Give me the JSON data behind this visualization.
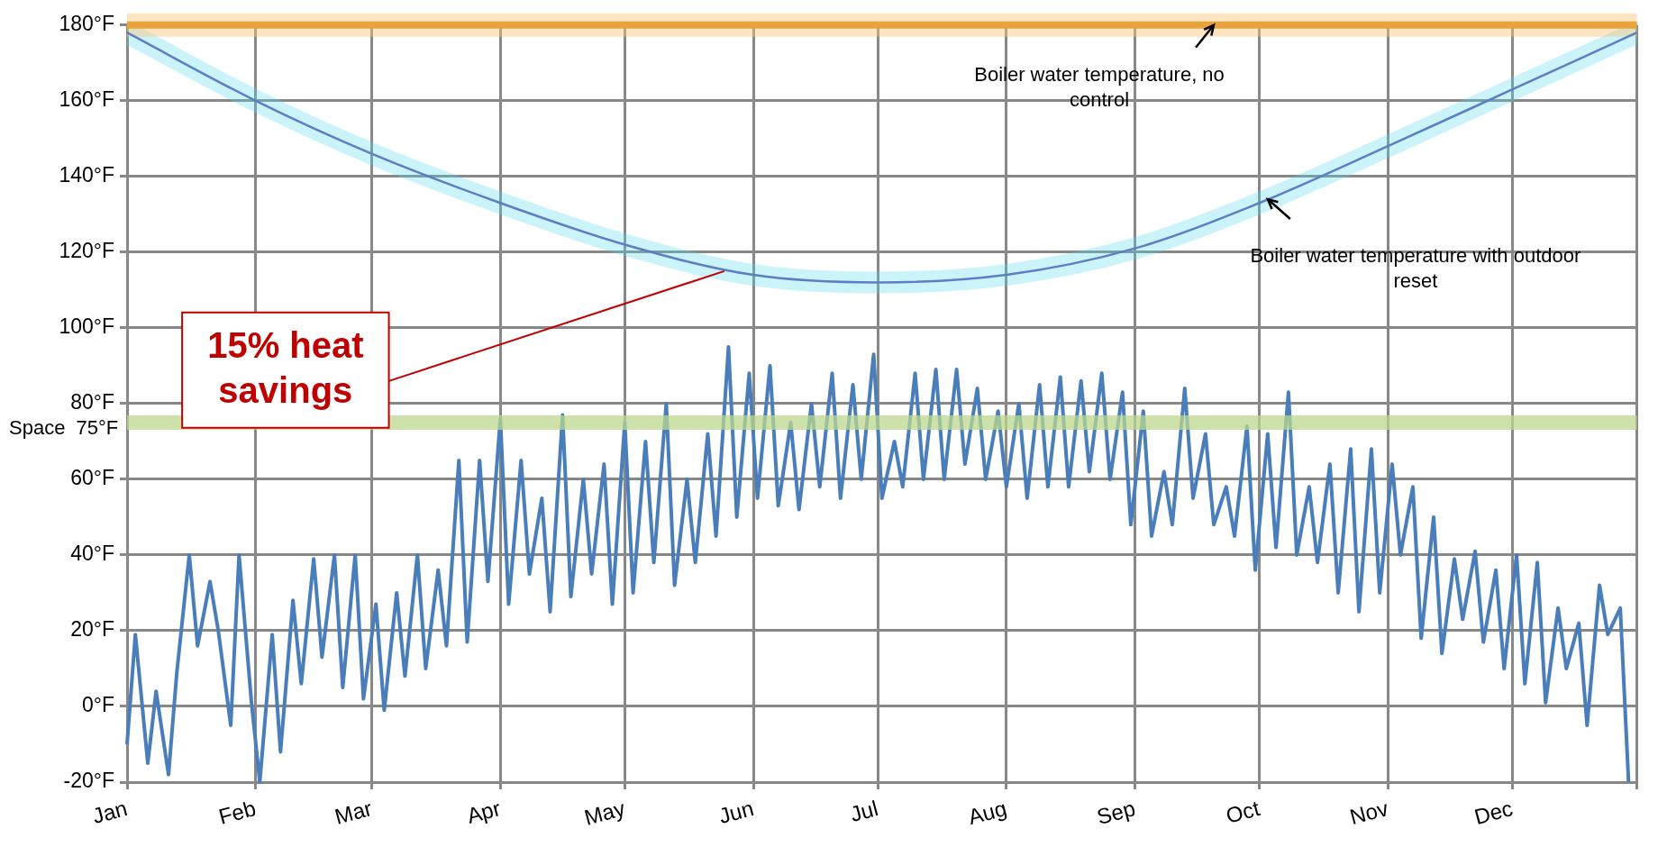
{
  "chart_data": {
    "type": "line",
    "xlim": [
      "--01-01",
      "--12-31"
    ],
    "xticks": [
      {
        "value": "--01-01",
        "label": "Jan"
      },
      {
        "value": "--02-01",
        "label": "Feb"
      },
      {
        "value": "--03-01",
        "label": "Mar"
      },
      {
        "value": "--04-01",
        "label": "Apr"
      },
      {
        "value": "--05-01",
        "label": "May"
      },
      {
        "value": "--06-01",
        "label": "Jun"
      },
      {
        "value": "--07-01",
        "label": "Jul"
      },
      {
        "value": "--08-01",
        "label": "Aug"
      },
      {
        "value": "--09-01",
        "label": "Sep"
      },
      {
        "value": "--10-01",
        "label": "Oct"
      },
      {
        "value": "--11-01",
        "label": "Nov"
      },
      {
        "value": "--12-01",
        "label": "Dec"
      },
      {
        "value": "--12-31",
        "label": null
      }
    ],
    "ylim": [
      -20,
      180
    ],
    "yticks": [
      {
        "value": -20,
        "label": "-20°F"
      },
      {
        "value": 0,
        "label": "0°F"
      },
      {
        "value": 20,
        "label": "20°F"
      },
      {
        "value": 40,
        "label": "40°F"
      },
      {
        "value": 60,
        "label": "60°F"
      },
      {
        "value": 80,
        "label": "80°F"
      },
      {
        "value": 100,
        "label": "100°F"
      },
      {
        "value": 120,
        "label": "120°F"
      },
      {
        "value": 140,
        "label": "140°F"
      },
      {
        "value": 160,
        "label": "160°F"
      },
      {
        "value": 180,
        "label": "180°F"
      }
    ],
    "grid": true,
    "legend": false,
    "marker": "none",
    "line_style": "solid",
    "series": [
      {
        "color": "#e8a33c",
        "x": [
          "--01-01",
          "--12-31"
        ],
        "values": [
          180,
          180
        ]
      },
      {
        "color": "#5b7fc4",
        "x": [
          "--01-01",
          "--02-01",
          "--03-01",
          "--04-01",
          "--05-01",
          "--06-01",
          "--07-01",
          "--08-01",
          "--09-01",
          "--10-01",
          "--11-01",
          "--12-01",
          "--12-31"
        ],
        "values": [
          178,
          160,
          146,
          133,
          122,
          114,
          112,
          114,
          121,
          133,
          148,
          163,
          178
        ]
      },
      {
        "color": "#4a7ebb",
        "x": [
          "--01-01",
          "--01-03",
          "--01-06",
          "--01-08",
          "--01-11",
          "--01-13",
          "--01-16",
          "--01-18",
          "--01-21",
          "--01-23",
          "--01-26",
          "--01-28",
          "--01-31",
          "--02-02",
          "--02-05",
          "--02-07",
          "--02-10",
          "--02-12",
          "--02-15",
          "--02-17",
          "--02-20",
          "--02-22",
          "--02-25",
          "--02-27",
          "--03-02",
          "--03-04",
          "--03-07",
          "--03-09",
          "--03-12",
          "--03-14",
          "--03-17",
          "--03-19",
          "--03-22",
          "--03-24",
          "--03-27",
          "--03-29",
          "--04-01",
          "--04-03",
          "--04-06",
          "--04-08",
          "--04-11",
          "--04-13",
          "--04-16",
          "--04-18",
          "--04-21",
          "--04-23",
          "--04-26",
          "--04-28",
          "--05-01",
          "--05-03",
          "--05-06",
          "--05-08",
          "--05-11",
          "--05-13",
          "--05-16",
          "--05-18",
          "--05-21",
          "--05-23",
          "--05-26",
          "--05-28",
          "--05-31",
          "--06-02",
          "--06-05",
          "--06-07",
          "--06-10",
          "--06-12",
          "--06-15",
          "--06-17",
          "--06-20",
          "--06-22",
          "--06-25",
          "--06-27",
          "--06-30",
          "--07-02",
          "--07-05",
          "--07-07",
          "--07-10",
          "--07-12",
          "--07-15",
          "--07-17",
          "--07-20",
          "--07-22",
          "--07-25",
          "--07-27",
          "--07-30",
          "--08-01",
          "--08-04",
          "--08-06",
          "--08-09",
          "--08-11",
          "--08-14",
          "--08-16",
          "--08-19",
          "--08-21",
          "--08-24",
          "--08-26",
          "--08-29",
          "--08-31",
          "--09-03",
          "--09-05",
          "--09-08",
          "--09-10",
          "--09-13",
          "--09-15",
          "--09-18",
          "--09-20",
          "--09-23",
          "--09-25",
          "--09-28",
          "--09-30",
          "--10-03",
          "--10-05",
          "--10-08",
          "--10-10",
          "--10-13",
          "--10-15",
          "--10-18",
          "--10-20",
          "--10-23",
          "--10-25",
          "--10-28",
          "--10-30",
          "--11-02",
          "--11-04",
          "--11-07",
          "--11-09",
          "--11-12",
          "--11-14",
          "--11-17",
          "--11-19",
          "--11-22",
          "--11-24",
          "--11-27",
          "--11-29",
          "--12-02",
          "--12-04",
          "--12-07",
          "--12-09",
          "--12-12",
          "--12-14",
          "--12-17",
          "--12-19",
          "--12-22",
          "--12-24",
          "--12-27",
          "--12-29"
        ],
        "values": [
          -10,
          19,
          -15,
          4,
          -18,
          9,
          40,
          16,
          33,
          20,
          -5,
          40,
          1,
          -20,
          19,
          -12,
          28,
          6,
          39,
          13,
          40,
          5,
          40,
          2,
          27,
          -1,
          30,
          8,
          40,
          10,
          36,
          16,
          65,
          17,
          65,
          33,
          76,
          27,
          65,
          35,
          55,
          25,
          77,
          29,
          60,
          35,
          64,
          27,
          75,
          30,
          70,
          38,
          80,
          32,
          60,
          38,
          72,
          45,
          95,
          50,
          88,
          55,
          90,
          53,
          75,
          52,
          80,
          58,
          88,
          55,
          85,
          60,
          93,
          55,
          70,
          58,
          88,
          60,
          89,
          60,
          89,
          64,
          84,
          60,
          78,
          58,
          80,
          55,
          85,
          58,
          87,
          58,
          86,
          62,
          88,
          60,
          83,
          48,
          78,
          45,
          62,
          48,
          84,
          55,
          72,
          48,
          58,
          45,
          74,
          36,
          72,
          42,
          83,
          40,
          58,
          38,
          64,
          30,
          68,
          25,
          68,
          30,
          64,
          40,
          58,
          18,
          50,
          14,
          39,
          23,
          41,
          17,
          36,
          10,
          40,
          6,
          38,
          1,
          26,
          10,
          22,
          -5,
          32,
          19,
          26,
          -20
        ]
      }
    ],
    "ref_lines": [
      {
        "axis": "y",
        "value": 75,
        "label": "Space  75°F",
        "color": "#bcd88f"
      }
    ],
    "annotations": [
      {
        "text": "Boiler water temperature, no control",
        "x": "--09-20",
        "y": 180
      },
      {
        "text": "Boiler water temperature with outdoor reset",
        "x": "--10-03",
        "y": 134
      },
      {
        "text": "15% heat savings",
        "x": "--05-25",
        "y": 115
      }
    ]
  }
}
